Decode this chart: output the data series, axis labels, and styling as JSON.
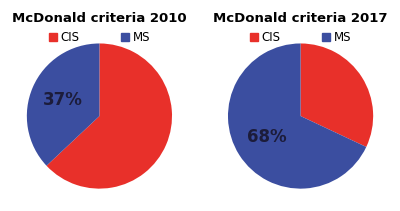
{
  "charts": [
    {
      "title": "McDonald criteria 2010",
      "slices": [
        63,
        37
      ],
      "labels": [
        "CIS",
        "MS"
      ],
      "colors": [
        "#e8302a",
        "#3b4ea0"
      ],
      "pct_label": "37%",
      "startangle": 90
    },
    {
      "title": "McDonald criteria 2017",
      "slices": [
        32,
        68
      ],
      "labels": [
        "CIS",
        "MS"
      ],
      "colors": [
        "#e8302a",
        "#3b4ea0"
      ],
      "pct_label": "68%",
      "startangle": 90
    }
  ],
  "background_color": "#ffffff",
  "title_fontsize": 9.5,
  "legend_fontsize": 8.5,
  "pct_fontsize": 12,
  "pct_color": "#1c1c3a"
}
